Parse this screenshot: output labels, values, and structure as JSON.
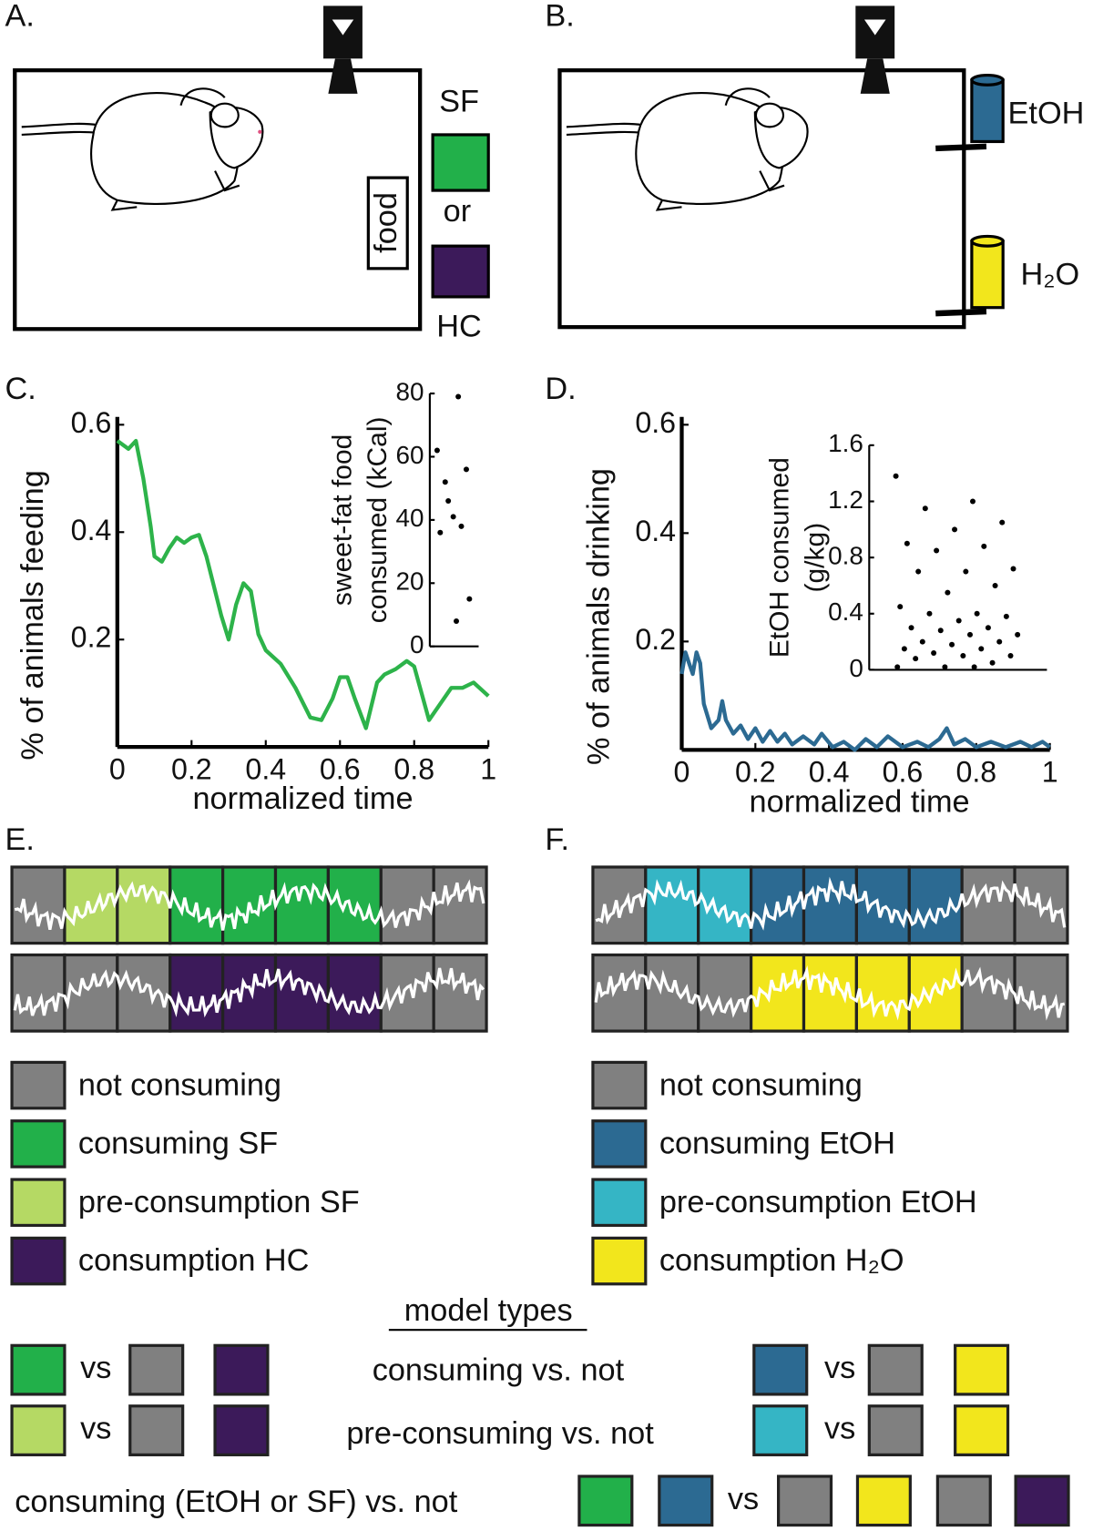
{
  "panel_labels": [
    "A.",
    "B.",
    "C.",
    "D.",
    "E.",
    "F."
  ],
  "panel_a": {
    "food": "food",
    "sf": "SF",
    "or": "or",
    "hc": "HC"
  },
  "panel_b": {
    "etoh": "EtOH",
    "h2o": "H₂O"
  },
  "chart_data": [
    {
      "type": "line",
      "color": "#2db34a",
      "xlabel": "normalized time",
      "ylabel": "% of animals feeding",
      "x": [
        0,
        0.03,
        0.05,
        0.07,
        0.09,
        0.1,
        0.12,
        0.14,
        0.16,
        0.18,
        0.2,
        0.22,
        0.24,
        0.26,
        0.28,
        0.3,
        0.32,
        0.34,
        0.36,
        0.38,
        0.4,
        0.44,
        0.48,
        0.52,
        0.55,
        0.58,
        0.6,
        0.62,
        0.64,
        0.67,
        0.7,
        0.72,
        0.75,
        0.78,
        0.8,
        0.82,
        0.84,
        0.87,
        0.9,
        0.93,
        0.96,
        1
      ],
      "values": [
        0.57,
        0.555,
        0.57,
        0.5,
        0.41,
        0.355,
        0.345,
        0.37,
        0.39,
        0.38,
        0.39,
        0.395,
        0.355,
        0.3,
        0.245,
        0.2,
        0.265,
        0.305,
        0.29,
        0.21,
        0.18,
        0.155,
        0.11,
        0.055,
        0.05,
        0.09,
        0.13,
        0.13,
        0.09,
        0.035,
        0.12,
        0.135,
        0.145,
        0.16,
        0.15,
        0.1,
        0.05,
        0.08,
        0.11,
        0.11,
        0.12,
        0.095
      ],
      "xlim": [
        0,
        1
      ],
      "ylim": [
        0,
        0.6
      ],
      "xticks": [
        0,
        0.2,
        0.4,
        0.6,
        0.8,
        1
      ],
      "yticks": [
        0.2,
        0.4,
        0.6
      ]
    },
    {
      "type": "line",
      "color": "#2c6a92",
      "xlabel": "normalized time",
      "ylabel": "% of animals drinking",
      "x": [
        0,
        0.01,
        0.02,
        0.03,
        0.04,
        0.05,
        0.06,
        0.08,
        0.1,
        0.11,
        0.12,
        0.14,
        0.16,
        0.18,
        0.2,
        0.22,
        0.24,
        0.26,
        0.28,
        0.3,
        0.33,
        0.36,
        0.38,
        0.41,
        0.44,
        0.47,
        0.5,
        0.53,
        0.56,
        0.6,
        0.64,
        0.67,
        0.7,
        0.72,
        0.74,
        0.77,
        0.8,
        0.84,
        0.88,
        0.92,
        0.95,
        0.98,
        1
      ],
      "values": [
        0.14,
        0.18,
        0.16,
        0.14,
        0.18,
        0.16,
        0.085,
        0.04,
        0.055,
        0.09,
        0.055,
        0.03,
        0.045,
        0.02,
        0.04,
        0.015,
        0.035,
        0.015,
        0.03,
        0.01,
        0.025,
        0.01,
        0.03,
        0.005,
        0.015,
        0,
        0.02,
        0.005,
        0.025,
        0.005,
        0.015,
        0.005,
        0.02,
        0.04,
        0.01,
        0.02,
        0.005,
        0.015,
        0.005,
        0.015,
        0.005,
        0.015,
        0.005
      ],
      "xlim": [
        0,
        1
      ],
      "ylim": [
        0,
        0.6
      ],
      "xticks": [
        0,
        0.2,
        0.4,
        0.6,
        0.8,
        1
      ],
      "yticks": [
        0.2,
        0.4,
        0.6
      ]
    },
    {
      "type": "scatter",
      "color": "#000000",
      "ylabel": [
        "sweet-fat food",
        "consumed (kCal)"
      ],
      "values": [
        62,
        79,
        52,
        56,
        41,
        36,
        38,
        46,
        15,
        8
      ],
      "ylim": [
        0,
        80
      ],
      "yticks": [
        0,
        20,
        40,
        60,
        80
      ]
    },
    {
      "type": "scatter",
      "color": "#000000",
      "ylabel": [
        "EtOH consumed",
        "(g/kg)"
      ],
      "values": [
        1.38,
        1.2,
        1.15,
        1.05,
        1.0,
        0.9,
        0.88,
        0.85,
        0.72,
        0.7,
        0.7,
        0.6,
        0.55,
        0.45,
        0.4,
        0.4,
        0.38,
        0.35,
        0.3,
        0.3,
        0.28,
        0.25,
        0.25,
        0.2,
        0.2,
        0.18,
        0.15,
        0.15,
        0.12,
        0.1,
        0.1,
        0.08,
        0.05,
        0.02,
        0.02,
        0.02
      ],
      "ylim": [
        0,
        1.6
      ],
      "yticks": [
        0,
        0.4,
        0.8,
        1.2,
        1.6
      ]
    }
  ],
  "legend_e": [
    {
      "label": "not consuming",
      "color": "#808080"
    },
    {
      "label": "consuming SF",
      "color": "#22b04a"
    },
    {
      "label": "pre-consumption SF",
      "color": "#b5d964"
    },
    {
      "label": "consumption HC",
      "color": "#3c1a5a"
    }
  ],
  "legend_f": [
    {
      "label": "not consuming",
      "color": "#808080"
    },
    {
      "label": "consuming EtOH",
      "color": "#2c6a92"
    },
    {
      "label": "pre-consumption EtOH",
      "color": "#35b5c5"
    },
    {
      "label": "consumption H₂O",
      "color": "#f2e61c"
    }
  ],
  "model_types": {
    "title": "model types",
    "vs": "vs",
    "rows": [
      "consuming vs. not",
      "pre-consuming vs. not",
      "consuming (EtOH or SF) vs. not"
    ]
  }
}
